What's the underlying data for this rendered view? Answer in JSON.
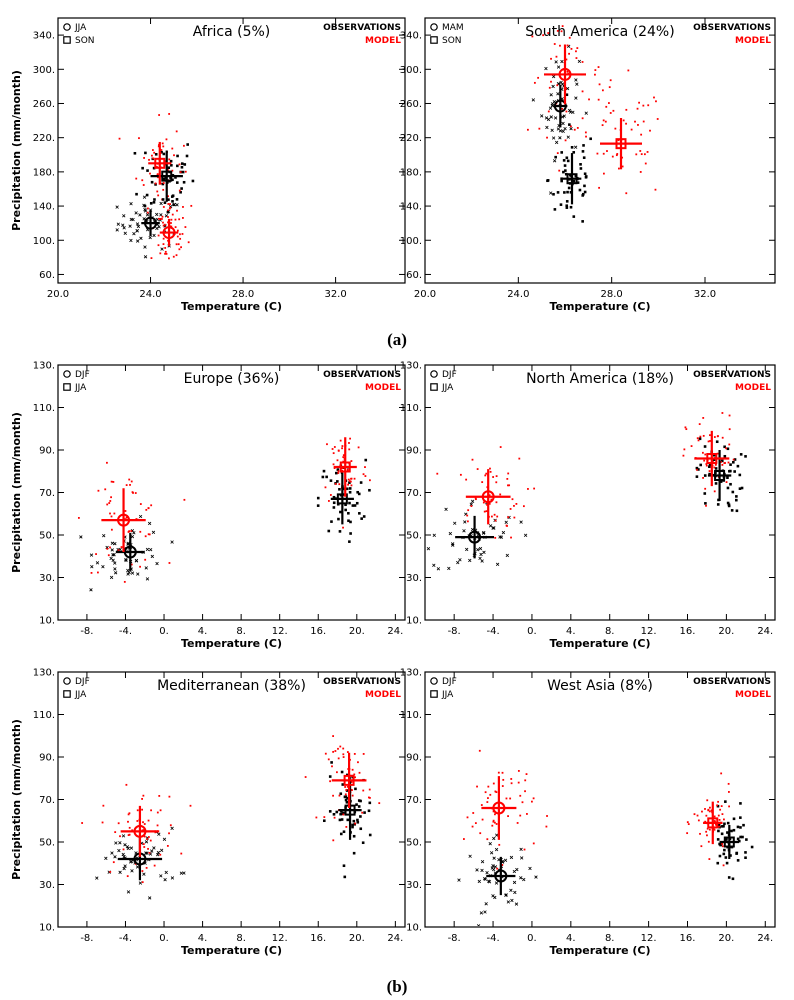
{
  "figure": {
    "label_a": "(a)",
    "label_b": "(b)",
    "legend_observations": "OBSERVATIONS",
    "legend_model": "MODEL",
    "colors": {
      "observations": "#000000",
      "model": "#ff0000",
      "frame": "#000000"
    }
  },
  "chart_data": [
    {
      "id": "africa",
      "type": "scatter",
      "title": "Africa (5%)",
      "xlabel": "Temperature (C)",
      "ylabel": "Precipitation (mm/month)",
      "xlim": [
        20,
        35
      ],
      "ylim": [
        50,
        360
      ],
      "xticks": [
        20,
        24,
        28,
        32
      ],
      "xtick_labels": [
        "20.0",
        "24.0",
        "28.0",
        "32.0"
      ],
      "yticks": [
        60,
        100,
        140,
        180,
        220,
        260,
        300,
        340
      ],
      "ytick_labels": [
        "60.",
        "100.",
        "140.",
        "180.",
        "220.",
        "260.",
        "300.",
        "340."
      ],
      "season_labels": {
        "circle": "JJA",
        "square": "SON"
      },
      "groups": [
        {
          "season": "JJA",
          "marker": "circle",
          "source": "observations",
          "x": 24.0,
          "y": 120,
          "xerr": 0.4,
          "yerr": 15,
          "cloud": {
            "xsd": 0.7,
            "ysd": 15
          }
        },
        {
          "season": "JJA",
          "marker": "circle",
          "source": "model",
          "x": 24.8,
          "y": 109,
          "xerr": 0.4,
          "yerr": 16,
          "cloud": {
            "xsd": 0.4,
            "ysd": 20
          }
        },
        {
          "season": "SON",
          "marker": "square",
          "source": "observations",
          "x": 24.7,
          "y": 175,
          "xerr": 0.7,
          "yerr": 30,
          "cloud": {
            "xsd": 0.6,
            "ysd": 25
          }
        },
        {
          "season": "SON",
          "marker": "square",
          "source": "model",
          "x": 24.4,
          "y": 190,
          "xerr": 0.5,
          "yerr": 25,
          "cloud": {
            "xsd": 0.5,
            "ysd": 25
          }
        }
      ]
    },
    {
      "id": "south-america",
      "type": "scatter",
      "title": "South America (24%)",
      "xlabel": "Temperature (C)",
      "ylabel": "Precipitation (mm/month)",
      "xlim": [
        20,
        35
      ],
      "ylim": [
        50,
        360
      ],
      "xticks": [
        20,
        24,
        28,
        32
      ],
      "xtick_labels": [
        "20.0",
        "24.0",
        "28.0",
        "32.0"
      ],
      "yticks": [
        60,
        100,
        140,
        180,
        220,
        260,
        300,
        340
      ],
      "ytick_labels": [
        "60.",
        "100.",
        "140.",
        "180.",
        "220.",
        "260.",
        "300.",
        "340."
      ],
      "season_labels": {
        "circle": "MAM",
        "square": "SON"
      },
      "groups": [
        {
          "season": "MAM",
          "marker": "circle",
          "source": "observations",
          "x": 25.8,
          "y": 257,
          "xerr": 0.3,
          "yerr": 25,
          "cloud": {
            "xsd": 0.4,
            "ysd": 30
          }
        },
        {
          "season": "MAM",
          "marker": "circle",
          "source": "model",
          "x": 26.0,
          "y": 294,
          "xerr": 0.9,
          "yerr": 35,
          "cloud": {
            "xsd": 0.8,
            "ysd": 35
          }
        },
        {
          "season": "SON",
          "marker": "square",
          "source": "observations",
          "x": 26.3,
          "y": 172,
          "xerr": 0.4,
          "yerr": 30,
          "cloud": {
            "xsd": 0.5,
            "ysd": 30
          }
        },
        {
          "season": "SON",
          "marker": "square",
          "source": "model",
          "x": 28.4,
          "y": 213,
          "xerr": 0.9,
          "yerr": 30,
          "cloud": {
            "xsd": 1.0,
            "ysd": 35
          }
        }
      ]
    },
    {
      "id": "europe",
      "type": "scatter",
      "title": "Europe (36%)",
      "xlabel": "Temperature (C)",
      "ylabel": "Precipitation (mm/month)",
      "xlim": [
        -11,
        25
      ],
      "ylim": [
        10,
        130
      ],
      "xticks": [
        -8,
        -4,
        0,
        4,
        8,
        12,
        16,
        20,
        24
      ],
      "xtick_labels": [
        "-8.",
        "-4.",
        "0.",
        "4.",
        "8.",
        "12.",
        "16.",
        "20.",
        "24."
      ],
      "yticks": [
        10,
        30,
        50,
        70,
        90,
        110,
        130
      ],
      "ytick_labels": [
        "10.",
        "30.",
        "50.",
        "70.",
        "90.",
        "110.",
        "130."
      ],
      "season_labels": {
        "circle": "DJF",
        "square": "JJA"
      },
      "groups": [
        {
          "season": "DJF",
          "marker": "circle",
          "source": "observations",
          "x": -3.5,
          "y": 42,
          "xerr": 1.5,
          "yerr": 9,
          "cloud": {
            "xsd": 1.8,
            "ysd": 7
          }
        },
        {
          "season": "DJF",
          "marker": "circle",
          "source": "model",
          "x": -4.2,
          "y": 57,
          "xerr": 2.3,
          "yerr": 15,
          "cloud": {
            "xsd": 2.0,
            "ysd": 12
          }
        },
        {
          "season": "JJA",
          "marker": "square",
          "source": "observations",
          "x": 18.5,
          "y": 67,
          "xerr": 1.2,
          "yerr": 12,
          "cloud": {
            "xsd": 1.2,
            "ysd": 9
          }
        },
        {
          "season": "JJA",
          "marker": "square",
          "source": "model",
          "x": 18.8,
          "y": 82,
          "xerr": 1.2,
          "yerr": 14,
          "cloud": {
            "xsd": 1.2,
            "ysd": 10
          }
        }
      ]
    },
    {
      "id": "north-america",
      "type": "scatter",
      "title": "North America (18%)",
      "xlabel": "Temperature (C)",
      "ylabel": "Precipitation (mm/month)",
      "xlim": [
        -11,
        25
      ],
      "ylim": [
        10,
        130
      ],
      "xticks": [
        -8,
        -4,
        0,
        4,
        8,
        12,
        16,
        20,
        24
      ],
      "xtick_labels": [
        "-8.",
        "-4.",
        "0.",
        "4.",
        "8.",
        "12.",
        "16.",
        "20.",
        "24."
      ],
      "yticks": [
        10,
        30,
        50,
        70,
        90,
        110,
        130
      ],
      "ytick_labels": [
        "10.",
        "30.",
        "50.",
        "70.",
        "90.",
        "110.",
        "130."
      ],
      "season_labels": {
        "circle": "DJF",
        "square": "JJA"
      },
      "groups": [
        {
          "season": "DJF",
          "marker": "circle",
          "source": "observations",
          "x": -5.9,
          "y": 49,
          "xerr": 2.0,
          "yerr": 10,
          "cloud": {
            "xsd": 2.2,
            "ysd": 9
          }
        },
        {
          "season": "DJF",
          "marker": "circle",
          "source": "model",
          "x": -4.5,
          "y": 68,
          "xerr": 2.3,
          "yerr": 13,
          "cloud": {
            "xsd": 2.0,
            "ysd": 10
          }
        },
        {
          "season": "JJA",
          "marker": "square",
          "source": "observations",
          "x": 19.3,
          "y": 78,
          "xerr": 1.2,
          "yerr": 12,
          "cloud": {
            "xsd": 1.2,
            "ysd": 9
          }
        },
        {
          "season": "JJA",
          "marker": "square",
          "source": "model",
          "x": 18.5,
          "y": 86,
          "xerr": 1.8,
          "yerr": 13,
          "cloud": {
            "xsd": 1.3,
            "ysd": 10
          }
        }
      ]
    },
    {
      "id": "mediterranean",
      "type": "scatter",
      "title": "Mediterranean (38%)",
      "xlabel": "Temperature (C)",
      "ylabel": "Precipitation (mm/month)",
      "xlim": [
        -11,
        25
      ],
      "ylim": [
        10,
        130
      ],
      "xticks": [
        -8,
        -4,
        0,
        4,
        8,
        12,
        16,
        20,
        24
      ],
      "xtick_labels": [
        "-8.",
        "-4.",
        "0.",
        "4.",
        "8.",
        "12.",
        "16.",
        "20.",
        "24."
      ],
      "yticks": [
        10,
        30,
        50,
        70,
        90,
        110,
        130
      ],
      "ytick_labels": [
        "10.",
        "30.",
        "50.",
        "70.",
        "90.",
        "110.",
        "130."
      ],
      "season_labels": {
        "circle": "DJF",
        "square": "JJA"
      },
      "groups": [
        {
          "season": "DJF",
          "marker": "circle",
          "source": "observations",
          "x": -2.5,
          "y": 42,
          "xerr": 2.3,
          "yerr": 10,
          "cloud": {
            "xsd": 2.0,
            "ysd": 7
          }
        },
        {
          "season": "DJF",
          "marker": "circle",
          "source": "model",
          "x": -2.5,
          "y": 55,
          "xerr": 2.0,
          "yerr": 12,
          "cloud": {
            "xsd": 2.0,
            "ysd": 10
          }
        },
        {
          "season": "JJA",
          "marker": "square",
          "source": "observations",
          "x": 19.3,
          "y": 65,
          "xerr": 1.2,
          "yerr": 14,
          "cloud": {
            "xsd": 1.2,
            "ysd": 10
          }
        },
        {
          "season": "JJA",
          "marker": "square",
          "source": "model",
          "x": 19.2,
          "y": 79,
          "xerr": 1.8,
          "yerr": 13,
          "cloud": {
            "xsd": 1.2,
            "ysd": 10
          }
        }
      ]
    },
    {
      "id": "west-asia",
      "type": "scatter",
      "title": "West Asia (8%)",
      "xlabel": "Temperature (C)",
      "ylabel": "Precipitation (mm/month)",
      "xlim": [
        -11,
        25
      ],
      "ylim": [
        10,
        130
      ],
      "xticks": [
        -8,
        -4,
        0,
        4,
        8,
        12,
        16,
        20,
        24
      ],
      "xtick_labels": [
        "-8.",
        "-4.",
        "0.",
        "4.",
        "8.",
        "12.",
        "16.",
        "20.",
        "24."
      ],
      "yticks": [
        10,
        30,
        50,
        70,
        90,
        110,
        130
      ],
      "ytick_labels": [
        "10.",
        "30.",
        "50.",
        "70.",
        "90.",
        "110.",
        "130."
      ],
      "season_labels": {
        "circle": "DJF",
        "square": "JJA"
      },
      "groups": [
        {
          "season": "DJF",
          "marker": "circle",
          "source": "observations",
          "x": -3.2,
          "y": 34,
          "xerr": 1.5,
          "yerr": 9,
          "cloud": {
            "xsd": 1.8,
            "ysd": 8
          }
        },
        {
          "season": "DJF",
          "marker": "circle",
          "source": "model",
          "x": -3.4,
          "y": 66,
          "xerr": 1.8,
          "yerr": 15,
          "cloud": {
            "xsd": 1.8,
            "ysd": 12
          }
        },
        {
          "season": "JJA",
          "marker": "square",
          "source": "observations",
          "x": 20.3,
          "y": 50,
          "xerr": 1.0,
          "yerr": 8,
          "cloud": {
            "xsd": 1.0,
            "ysd": 7
          }
        },
        {
          "season": "JJA",
          "marker": "square",
          "source": "model",
          "x": 18.6,
          "y": 59,
          "xerr": 1.0,
          "yerr": 10,
          "cloud": {
            "xsd": 1.0,
            "ysd": 8
          }
        }
      ]
    }
  ]
}
